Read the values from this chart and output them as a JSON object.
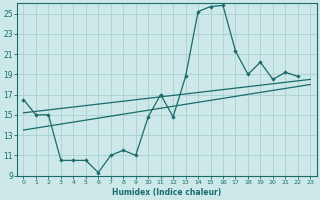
{
  "xlabel": "Humidex (Indice chaleur)",
  "bg_color": "#cce8e8",
  "line_color": "#1a6b6b",
  "grid_color": "#aacfcf",
  "xlim": [
    -0.5,
    23.5
  ],
  "ylim": [
    9,
    26
  ],
  "xticks": [
    0,
    1,
    2,
    3,
    4,
    5,
    6,
    7,
    8,
    9,
    10,
    11,
    12,
    13,
    14,
    15,
    16,
    17,
    18,
    19,
    20,
    21,
    22,
    23
  ],
  "yticks": [
    9,
    11,
    13,
    15,
    17,
    19,
    21,
    23,
    25
  ],
  "line1_x": [
    0,
    1,
    2,
    3,
    4,
    5,
    6,
    7,
    8,
    9,
    10,
    11,
    12,
    13,
    14,
    15,
    16,
    17,
    18,
    19,
    20,
    21,
    22
  ],
  "line1_y": [
    16.5,
    15.0,
    15.0,
    10.5,
    10.5,
    10.5,
    9.3,
    11.0,
    11.5,
    11.0,
    14.8,
    17.0,
    14.8,
    18.8,
    25.2,
    25.7,
    25.8,
    21.3,
    19.0,
    20.2,
    18.5,
    19.2,
    18.8
  ],
  "line2_x": [
    0,
    23
  ],
  "line2_y": [
    15.2,
    18.5
  ],
  "line3_x": [
    0,
    23
  ],
  "line3_y": [
    13.5,
    18.0
  ]
}
